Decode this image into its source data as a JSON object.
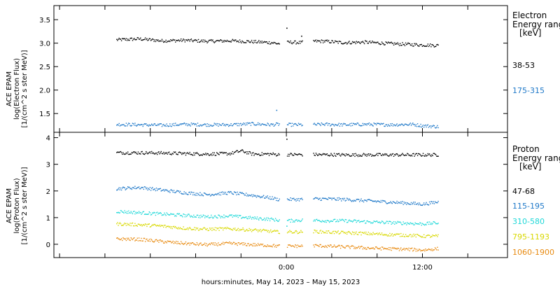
{
  "chart_data": [
    {
      "type": "scatter",
      "ylabel": [
        "ACE EPAM",
        "log(Electron Flux)",
        "[1/(cm^2 s ster MeV)]"
      ],
      "ylim": [
        1.1,
        3.8
      ],
      "yticks": [
        1.5,
        2.0,
        2.5,
        3.0,
        3.5
      ],
      "ytick_labels": [
        "1.5",
        "2.0",
        "2.5",
        "3.0",
        "3.5"
      ],
      "legend_title": [
        "Electron",
        "Energy ranges",
        "[keV]"
      ],
      "grid": false,
      "series": [
        {
          "name": "38-53",
          "color": "#000000",
          "x": [
            -15,
            -13,
            -11,
            -9,
            -7,
            -5,
            -3,
            -1.3,
            -0.8,
            0.3,
            1.2,
            2.3,
            3.3,
            5,
            7,
            9,
            11,
            12,
            13.3
          ],
          "y": [
            3.08,
            3.1,
            3.06,
            3.07,
            3.05,
            3.06,
            3.04,
            3.02,
            3.0,
            3.03,
            3.02,
            3.05,
            3.05,
            3.02,
            3.03,
            3.0,
            2.98,
            2.97,
            2.96
          ],
          "outliers": [
            {
              "x": 0.0,
              "y": 3.33
            },
            {
              "x": 1.3,
              "y": 3.16
            }
          ]
        },
        {
          "name": "175-315",
          "color": "#1e78c8",
          "x": [
            -15,
            -13,
            -11,
            -9,
            -7,
            -5,
            -3,
            -1.3,
            -0.8,
            0.3,
            1.2,
            2.3,
            3.3,
            5,
            7,
            9,
            11,
            12,
            13.3
          ],
          "y": [
            1.28,
            1.27,
            1.26,
            1.28,
            1.27,
            1.27,
            1.29,
            1.27,
            1.28,
            1.27,
            1.27,
            1.27,
            1.28,
            1.27,
            1.28,
            1.27,
            1.28,
            1.25,
            1.23
          ],
          "outliers": [
            {
              "x": -0.9,
              "y": 1.58
            }
          ]
        }
      ]
    },
    {
      "type": "scatter",
      "ylabel": [
        "ACE EPAM",
        "log(Proton Flux)",
        "[1/(cm^2 s ster MeV)]"
      ],
      "ylim": [
        -0.5,
        4.2
      ],
      "yticks": [
        0,
        1,
        2,
        3,
        4
      ],
      "ytick_labels": [
        "0",
        "1",
        "2",
        "3",
        "4"
      ],
      "legend_title": [
        "Proton",
        "Energy ranges",
        "[keV]"
      ],
      "grid": false,
      "series": [
        {
          "name": "47-68",
          "color": "#000000",
          "x": [
            -15,
            -13,
            -11,
            -9,
            -7,
            -5,
            -4,
            -3,
            -1.3,
            -0.8,
            0.3,
            1.2,
            2.3,
            3.3,
            5,
            7,
            9,
            11,
            12,
            13.3
          ],
          "y": [
            3.45,
            3.45,
            3.44,
            3.42,
            3.4,
            3.42,
            3.52,
            3.4,
            3.4,
            3.38,
            3.38,
            3.38,
            3.38,
            3.38,
            3.37,
            3.37,
            3.37,
            3.37,
            3.37,
            3.37
          ],
          "outliers": [
            {
              "x": 0.0,
              "y": 3.96
            }
          ]
        },
        {
          "name": "115-195",
          "color": "#1e78c8",
          "x": [
            -15,
            -13,
            -11,
            -9,
            -7,
            -5,
            -3,
            -1.3,
            -0.8,
            0.3,
            1.2,
            2.3,
            3.3,
            5,
            7,
            9,
            11,
            12,
            13.3
          ],
          "y": [
            2.1,
            2.15,
            2.05,
            1.95,
            1.88,
            1.95,
            1.85,
            1.75,
            1.7,
            1.7,
            1.7,
            1.72,
            1.72,
            1.7,
            1.65,
            1.6,
            1.55,
            1.52,
            1.6
          ]
        },
        {
          "name": "310-580",
          "color": "#20d8d8",
          "x": [
            -15,
            -13,
            -11,
            -9,
            -7,
            -5,
            -3,
            -1.3,
            -0.8,
            0.3,
            1.2,
            2.3,
            3.3,
            5,
            7,
            9,
            11,
            12,
            13.3
          ],
          "y": [
            1.25,
            1.2,
            1.15,
            1.1,
            1.05,
            1.08,
            1.0,
            0.95,
            0.92,
            0.9,
            0.92,
            0.92,
            0.9,
            0.9,
            0.86,
            0.83,
            0.8,
            0.78,
            0.82
          ],
          "outliers": [
            {
              "x": 0.0,
              "y": 0.7
            }
          ]
        },
        {
          "name": "795-1193",
          "color": "#d8d800",
          "x": [
            -15,
            -13,
            -11,
            -9,
            -7,
            -5,
            -3,
            -1.3,
            -0.8,
            0.3,
            1.2,
            2.3,
            3.3,
            5,
            7,
            9,
            11,
            12,
            13.3
          ],
          "y": [
            0.78,
            0.75,
            0.7,
            0.62,
            0.58,
            0.6,
            0.55,
            0.5,
            0.48,
            0.48,
            0.48,
            0.5,
            0.48,
            0.45,
            0.42,
            0.38,
            0.35,
            0.32,
            0.32
          ]
        },
        {
          "name": "1060-1900",
          "color": "#e88a10",
          "x": [
            -15,
            -13,
            -11,
            -9,
            -7,
            -5,
            -3,
            -1.3,
            -0.8,
            0.3,
            1.2,
            2.3,
            3.3,
            5,
            7,
            9,
            11,
            12,
            13.3
          ],
          "y": [
            0.22,
            0.2,
            0.12,
            0.05,
            0.0,
            0.05,
            0.0,
            -0.03,
            -0.05,
            -0.05,
            -0.05,
            -0.03,
            -0.05,
            -0.08,
            -0.12,
            -0.15,
            -0.18,
            -0.2,
            -0.15
          ]
        }
      ]
    }
  ],
  "x_axis": {
    "unit": "hours relative to 0:00, May 15, 2023",
    "range": [
      -20.5,
      19.5
    ],
    "ticks": [
      0,
      12
    ],
    "tick_labels": [
      "0:00",
      "12:00"
    ],
    "minor_ticks": [
      -20,
      -16,
      -12,
      -8,
      -4,
      4,
      8,
      16
    ],
    "data_gaps": [
      [
        -0.6,
        0.0
      ],
      [
        1.4,
        2.3
      ]
    ],
    "data_end": 13.4,
    "xlabel": "hours:minutes, May 14, 2023 – May 15, 2023"
  }
}
